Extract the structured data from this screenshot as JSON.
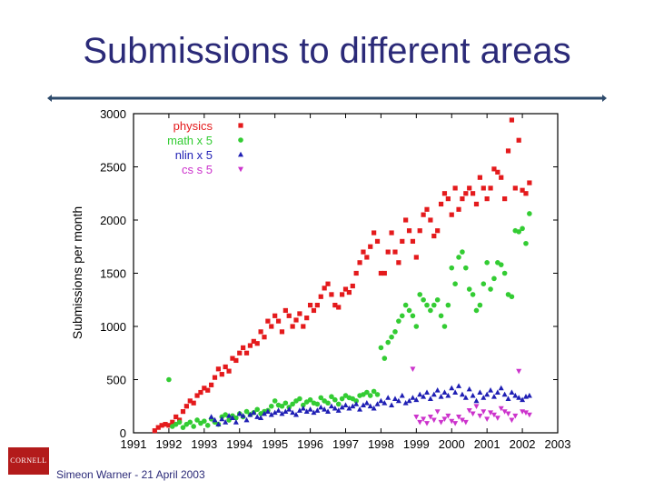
{
  "slide": {
    "title": "Submissions to different areas",
    "footer": "Simeon Warner - 21 April 2003",
    "logo_text": "CORNELL",
    "title_color": "#2b2a78",
    "rule_color": "#2d4a6b"
  },
  "chart_data": {
    "type": "scatter",
    "title": "",
    "xlabel": "",
    "ylabel": "Submissions per month",
    "xlim": [
      1991,
      2003
    ],
    "ylim": [
      0,
      3000
    ],
    "x_ticks": [
      1991,
      1992,
      1993,
      1994,
      1995,
      1996,
      1997,
      1998,
      1999,
      2000,
      2001,
      2002,
      2003
    ],
    "y_ticks": [
      0,
      500,
      1000,
      1500,
      2000,
      2500,
      3000
    ],
    "grid": false,
    "legend_position": "top-left",
    "series": [
      {
        "name": "physics",
        "color": "#e41a1c",
        "marker": "square",
        "x": [
          1991.6,
          1991.7,
          1991.8,
          1991.9,
          1992.0,
          1992.1,
          1992.2,
          1992.3,
          1992.4,
          1992.5,
          1992.6,
          1992.7,
          1992.8,
          1992.9,
          1993.0,
          1993.1,
          1993.2,
          1993.3,
          1993.4,
          1993.5,
          1993.6,
          1993.7,
          1993.8,
          1993.9,
          1994.0,
          1994.1,
          1994.2,
          1994.3,
          1994.4,
          1994.5,
          1994.6,
          1994.7,
          1994.8,
          1994.9,
          1995.0,
          1995.1,
          1995.2,
          1995.3,
          1995.4,
          1995.5,
          1995.6,
          1995.7,
          1995.8,
          1995.9,
          1996.0,
          1996.1,
          1996.2,
          1996.3,
          1996.4,
          1996.5,
          1996.6,
          1996.7,
          1996.8,
          1996.9,
          1997.0,
          1997.1,
          1997.2,
          1997.3,
          1997.4,
          1997.5,
          1997.6,
          1997.7,
          1997.8,
          1997.9,
          1998.0,
          1998.1,
          1998.2,
          1998.3,
          1998.4,
          1998.5,
          1998.6,
          1998.7,
          1998.8,
          1998.9,
          1999.0,
          1999.1,
          1999.2,
          1999.3,
          1999.4,
          1999.5,
          1999.6,
          1999.7,
          1999.8,
          1999.9,
          2000.0,
          2000.1,
          2000.2,
          2000.3,
          2000.4,
          2000.5,
          2000.6,
          2000.7,
          2000.8,
          2000.9,
          2001.0,
          2001.1,
          2001.2,
          2001.3,
          2001.4,
          2001.5,
          2001.6,
          2001.7,
          2001.8,
          2001.9,
          2002.0,
          2002.1,
          2002.2
        ],
        "y": [
          20,
          50,
          70,
          80,
          70,
          100,
          150,
          120,
          200,
          250,
          300,
          280,
          350,
          380,
          420,
          400,
          450,
          520,
          600,
          550,
          620,
          580,
          700,
          680,
          750,
          800,
          750,
          820,
          860,
          840,
          950,
          900,
          1050,
          1000,
          1100,
          1050,
          950,
          1150,
          1100,
          1000,
          1060,
          1120,
          1000,
          1080,
          1200,
          1150,
          1200,
          1280,
          1360,
          1400,
          1300,
          1200,
          1180,
          1300,
          1350,
          1320,
          1380,
          1500,
          1600,
          1700,
          1650,
          1750,
          1880,
          1800,
          1500,
          1500,
          1700,
          1880,
          1700,
          1600,
          1800,
          2000,
          1900,
          1800,
          1650,
          1900,
          2050,
          2100,
          2000,
          1850,
          1900,
          2150,
          2250,
          2200,
          2050,
          2300,
          2100,
          2200,
          2250,
          2300,
          2250,
          2150,
          2400,
          2300,
          2200,
          2300,
          2480,
          2450,
          2400,
          2200,
          2650,
          2940,
          2300,
          2750,
          2280,
          2250,
          2350
        ]
      },
      {
        "name": "math x 5",
        "color": "#33cc33",
        "marker": "circle",
        "x": [
          1992.0,
          1992.1,
          1992.2,
          1992.3,
          1992.4,
          1992.5,
          1992.6,
          1992.7,
          1992.8,
          1992.9,
          1993.0,
          1993.1,
          1993.2,
          1993.3,
          1993.4,
          1993.5,
          1993.6,
          1993.7,
          1993.8,
          1993.9,
          1994.0,
          1994.1,
          1994.2,
          1994.3,
          1994.4,
          1994.5,
          1994.6,
          1994.7,
          1994.8,
          1994.9,
          1995.0,
          1995.1,
          1995.2,
          1995.3,
          1995.4,
          1995.5,
          1995.6,
          1995.7,
          1995.8,
          1995.9,
          1996.0,
          1996.1,
          1996.2,
          1996.3,
          1996.4,
          1996.5,
          1996.6,
          1996.7,
          1996.8,
          1996.9,
          1997.0,
          1997.1,
          1997.2,
          1997.3,
          1997.4,
          1997.5,
          1997.6,
          1997.7,
          1997.8,
          1997.9,
          1998.0,
          1998.1,
          1998.2,
          1998.3,
          1998.4,
          1998.5,
          1998.6,
          1998.7,
          1998.8,
          1998.9,
          1999.0,
          1999.1,
          1999.2,
          1999.3,
          1999.4,
          1999.5,
          1999.6,
          1999.7,
          1999.8,
          1999.9,
          2000.0,
          2000.1,
          2000.2,
          2000.3,
          2000.4,
          2000.5,
          2000.6,
          2000.7,
          2000.8,
          2000.9,
          2001.0,
          2001.1,
          2001.2,
          2001.3,
          2001.4,
          2001.5,
          2001.6,
          2001.7,
          2001.8,
          2001.9,
          2002.0,
          2002.1,
          2002.2
        ],
        "y": [
          500,
          60,
          80,
          100,
          50,
          80,
          100,
          60,
          120,
          90,
          110,
          70,
          130,
          100,
          80,
          150,
          170,
          120,
          160,
          140,
          180,
          150,
          200,
          170,
          190,
          220,
          180,
          200,
          210,
          250,
          300,
          260,
          250,
          280,
          240,
          270,
          300,
          320,
          260,
          290,
          310,
          280,
          270,
          330,
          300,
          280,
          340,
          310,
          270,
          320,
          350,
          330,
          320,
          300,
          350,
          360,
          380,
          350,
          390,
          360,
          800,
          700,
          850,
          900,
          950,
          1050,
          1100,
          1200,
          1150,
          1100,
          1000,
          1300,
          1250,
          1200,
          1150,
          1200,
          1250,
          1100,
          1000,
          1200,
          1550,
          1400,
          1650,
          1700,
          1550,
          1350,
          1300,
          1150,
          1200,
          1400,
          1600,
          1350,
          1450,
          1600,
          1580,
          1500,
          1300,
          1280,
          1900,
          1890,
          1920,
          1780,
          2060
        ]
      },
      {
        "name": "nlin x 5",
        "color": "#1f1fb4",
        "marker": "triangle-up",
        "x": [
          1993.2,
          1993.3,
          1993.4,
          1993.5,
          1993.6,
          1993.7,
          1993.8,
          1993.9,
          1994.0,
          1994.1,
          1994.2,
          1994.3,
          1994.4,
          1994.5,
          1994.6,
          1994.7,
          1994.8,
          1994.9,
          1995.0,
          1995.1,
          1995.2,
          1995.3,
          1995.4,
          1995.5,
          1995.6,
          1995.7,
          1995.8,
          1995.9,
          1996.0,
          1996.1,
          1996.2,
          1996.3,
          1996.4,
          1996.5,
          1996.6,
          1996.7,
          1996.8,
          1996.9,
          1997.0,
          1997.1,
          1997.2,
          1997.3,
          1997.4,
          1997.5,
          1997.6,
          1997.7,
          1997.8,
          1997.9,
          1998.0,
          1998.1,
          1998.2,
          1998.3,
          1998.4,
          1998.5,
          1998.6,
          1998.7,
          1998.8,
          1998.9,
          1999.0,
          1999.1,
          1999.2,
          1999.3,
          1999.4,
          1999.5,
          1999.6,
          1999.7,
          1999.8,
          1999.9,
          2000.0,
          2000.1,
          2000.2,
          2000.3,
          2000.4,
          2000.5,
          2000.6,
          2000.7,
          2000.8,
          2000.9,
          2001.0,
          2001.1,
          2001.2,
          2001.3,
          2001.4,
          2001.5,
          2001.6,
          2001.7,
          2001.8,
          2001.9,
          2002.0,
          2002.1,
          2002.2
        ],
        "y": [
          150,
          120,
          80,
          130,
          100,
          160,
          140,
          100,
          180,
          160,
          120,
          170,
          190,
          150,
          140,
          180,
          200,
          170,
          190,
          210,
          180,
          200,
          220,
          190,
          170,
          210,
          230,
          200,
          220,
          190,
          210,
          240,
          220,
          200,
          250,
          230,
          210,
          240,
          260,
          230,
          250,
          270,
          220,
          260,
          280,
          250,
          230,
          270,
          300,
          280,
          330,
          260,
          320,
          300,
          350,
          280,
          300,
          330,
          310,
          360,
          340,
          380,
          320,
          360,
          400,
          340,
          380,
          350,
          420,
          380,
          440,
          360,
          330,
          410,
          350,
          300,
          380,
          330,
          360,
          400,
          340,
          380,
          420,
          360,
          320,
          380,
          350,
          330,
          310,
          340,
          350
        ]
      },
      {
        "name": "cs s 5",
        "color": "#cc33cc",
        "marker": "triangle-down",
        "x": [
          1998.9,
          1999.0,
          1999.1,
          1999.2,
          1999.3,
          1999.4,
          1999.5,
          1999.6,
          1999.7,
          1999.8,
          1999.9,
          2000.0,
          2000.1,
          2000.2,
          2000.3,
          2000.4,
          2000.5,
          2000.6,
          2000.7,
          2000.8,
          2000.9,
          2001.0,
          2001.1,
          2001.2,
          2001.3,
          2001.4,
          2001.5,
          2001.6,
          2001.7,
          2001.8,
          2001.9,
          2002.0,
          2002.1,
          2002.2
        ],
        "y": [
          600,
          150,
          100,
          130,
          90,
          150,
          120,
          200,
          100,
          130,
          160,
          110,
          90,
          150,
          120,
          100,
          210,
          180,
          250,
          160,
          200,
          130,
          190,
          170,
          140,
          230,
          200,
          180,
          120,
          160,
          580,
          200,
          190,
          170
        ]
      }
    ]
  }
}
